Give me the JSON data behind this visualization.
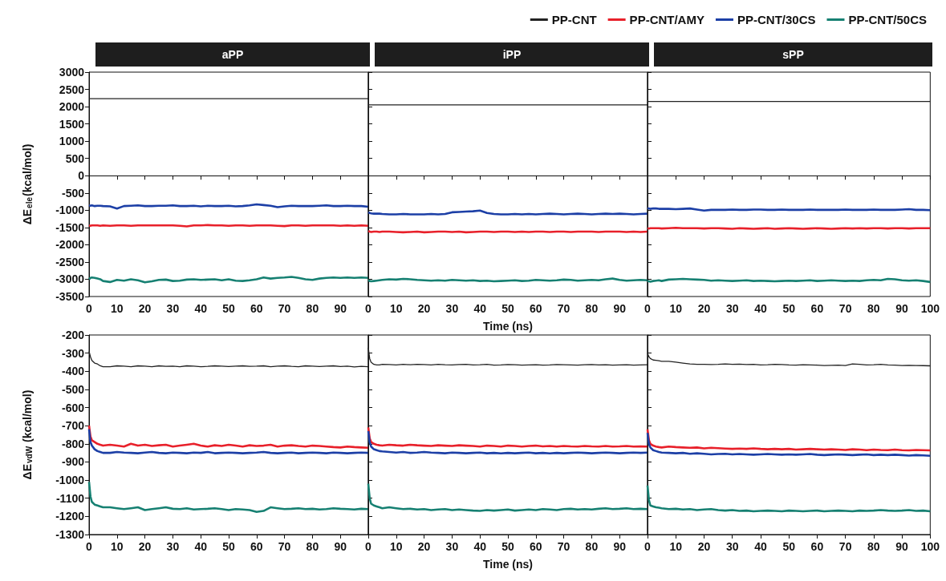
{
  "chart_data": [
    {
      "type": "line",
      "title": "aPP",
      "ylabel": "ΔE$_{ele}$(kcal/mol)",
      "xlim": [
        0,
        100
      ],
      "xticks": [
        0,
        10,
        20,
        30,
        40,
        50,
        60,
        70,
        80,
        90
      ],
      "ylim": [
        -3500,
        3000
      ],
      "yticks": [
        -3500,
        -3000,
        -2500,
        -2000,
        -1500,
        -1000,
        -500,
        0,
        500,
        1000,
        1500,
        2000,
        2500,
        3000
      ],
      "x": [
        0,
        0.5,
        1,
        2,
        3,
        4,
        5,
        7.5,
        10,
        12.5,
        15,
        17.5,
        20,
        22.5,
        25,
        27.5,
        30,
        32.5,
        35,
        37.5,
        40,
        42.5,
        45,
        47.5,
        50,
        52.5,
        55,
        57.5,
        60,
        62.5,
        65,
        67.5,
        70,
        72.5,
        75,
        77.5,
        80,
        82.5,
        85,
        87.5,
        90,
        92.5,
        95,
        97.5,
        100
      ],
      "series": [
        {
          "color": "#222222",
          "values": [
            2230,
            2230,
            2230,
            2230,
            2230,
            2230,
            2230,
            2230,
            2230,
            2230,
            2230,
            2230,
            2230,
            2230,
            2230,
            2230,
            2230,
            2230,
            2230,
            2230,
            2230,
            2230,
            2230,
            2230,
            2230,
            2230,
            2230,
            2230,
            2230,
            2230,
            2230,
            2230,
            2230,
            2230,
            2230,
            2230,
            2230,
            2230,
            2230,
            2230,
            2230,
            2230,
            2230,
            2230,
            2230
          ]
        },
        {
          "color": "#e8202a",
          "values": [
            -1440,
            -1450,
            -1440,
            -1440,
            -1440,
            -1450,
            -1440,
            -1450,
            -1440,
            -1440,
            -1450,
            -1440,
            -1440,
            -1440,
            -1440,
            -1440,
            -1440,
            -1450,
            -1470,
            -1440,
            -1440,
            -1430,
            -1440,
            -1440,
            -1450,
            -1440,
            -1440,
            -1450,
            -1440,
            -1440,
            -1440,
            -1450,
            -1460,
            -1440,
            -1440,
            -1450,
            -1440,
            -1440,
            -1440,
            -1440,
            -1450,
            -1440,
            -1450,
            -1440,
            -1450
          ]
        },
        {
          "color": "#1c3fa6",
          "values": [
            -860,
            -870,
            -860,
            -880,
            -870,
            -870,
            -880,
            -890,
            -950,
            -880,
            -870,
            -860,
            -880,
            -880,
            -870,
            -870,
            -860,
            -880,
            -880,
            -870,
            -890,
            -870,
            -880,
            -880,
            -870,
            -890,
            -880,
            -860,
            -830,
            -850,
            -870,
            -910,
            -890,
            -870,
            -880,
            -880,
            -880,
            -870,
            -860,
            -880,
            -880,
            -870,
            -880,
            -880,
            -900
          ]
        },
        {
          "color": "#168072",
          "values": [
            -3000,
            -2960,
            -2950,
            -2960,
            -2980,
            -3000,
            -3050,
            -3080,
            -3020,
            -3040,
            -3000,
            -3030,
            -3090,
            -3060,
            -3020,
            -3010,
            -3050,
            -3040,
            -3010,
            -3000,
            -3020,
            -3010,
            -3000,
            -3030,
            -3000,
            -3040,
            -3050,
            -3030,
            -3000,
            -2950,
            -2980,
            -2960,
            -2950,
            -2930,
            -2960,
            -3000,
            -3020,
            -2980,
            -2960,
            -2950,
            -2960,
            -2950,
            -2960,
            -2950,
            -2960
          ]
        }
      ]
    },
    {
      "type": "line",
      "title": "iPP",
      "xlabel": "Time (ns)",
      "legend": "top right",
      "tick_labels": "x",
      "xlim": [
        0,
        100
      ],
      "xticks": [
        0,
        10,
        20,
        30,
        40,
        50,
        60,
        70,
        80,
        90
      ],
      "ylim": [
        -3500,
        3000
      ],
      "yticks": [
        -3500,
        -3000,
        -2500,
        -2000,
        -1500,
        -1000,
        -500,
        0,
        500,
        1000,
        1500,
        2000,
        2500,
        3000
      ],
      "x": [
        0,
        0.5,
        1,
        2,
        3,
        4,
        5,
        7.5,
        10,
        12.5,
        15,
        17.5,
        20,
        22.5,
        25,
        27.5,
        30,
        32.5,
        35,
        37.5,
        40,
        42.5,
        45,
        47.5,
        50,
        52.5,
        55,
        57.5,
        60,
        62.5,
        65,
        67.5,
        70,
        72.5,
        75,
        77.5,
        80,
        82.5,
        85,
        87.5,
        90,
        92.5,
        95,
        97.5,
        100
      ],
      "series": [
        {
          "name": "PP-CNT",
          "color": "#222222",
          "values": [
            2050,
            2050,
            2050,
            2050,
            2050,
            2050,
            2050,
            2050,
            2050,
            2050,
            2050,
            2050,
            2050,
            2050,
            2050,
            2050,
            2050,
            2050,
            2050,
            2050,
            2050,
            2050,
            2050,
            2050,
            2050,
            2050,
            2050,
            2050,
            2050,
            2050,
            2050,
            2050,
            2050,
            2050,
            2050,
            2050,
            2050,
            2050,
            2050,
            2050,
            2050,
            2050,
            2050,
            2050,
            2050
          ]
        },
        {
          "name": "PP-CNT/AMY",
          "color": "#e8202a",
          "values": [
            -1600,
            -1620,
            -1630,
            -1620,
            -1620,
            -1630,
            -1620,
            -1620,
            -1630,
            -1640,
            -1630,
            -1620,
            -1640,
            -1630,
            -1620,
            -1620,
            -1630,
            -1620,
            -1640,
            -1630,
            -1620,
            -1620,
            -1630,
            -1620,
            -1620,
            -1630,
            -1620,
            -1630,
            -1620,
            -1620,
            -1630,
            -1620,
            -1620,
            -1630,
            -1620,
            -1620,
            -1620,
            -1630,
            -1620,
            -1620,
            -1620,
            -1630,
            -1620,
            -1630,
            -1620
          ]
        },
        {
          "name": "PP-CNT/30CS",
          "color": "#1c3fa6",
          "values": [
            -1060,
            -1080,
            -1090,
            -1100,
            -1100,
            -1100,
            -1110,
            -1120,
            -1120,
            -1110,
            -1120,
            -1120,
            -1120,
            -1110,
            -1120,
            -1110,
            -1060,
            -1050,
            -1040,
            -1030,
            -1010,
            -1080,
            -1110,
            -1120,
            -1120,
            -1110,
            -1120,
            -1110,
            -1120,
            -1110,
            -1100,
            -1110,
            -1120,
            -1110,
            -1100,
            -1110,
            -1120,
            -1110,
            -1100,
            -1110,
            -1100,
            -1110,
            -1120,
            -1110,
            -1100
          ]
        },
        {
          "name": "PP-CNT/50CS",
          "color": "#168072",
          "values": [
            -3020,
            -3050,
            -3060,
            -3050,
            -3040,
            -3030,
            -3020,
            -3000,
            -3010,
            -2990,
            -3000,
            -3020,
            -3030,
            -3040,
            -3030,
            -3040,
            -3020,
            -3030,
            -3040,
            -3030,
            -3050,
            -3040,
            -3060,
            -3050,
            -3040,
            -3030,
            -3050,
            -3040,
            -3020,
            -3030,
            -3040,
            -3030,
            -3010,
            -3020,
            -3040,
            -3030,
            -3020,
            -3030,
            -3000,
            -2980,
            -3020,
            -3040,
            -3030,
            -3020,
            -3030
          ]
        }
      ]
    },
    {
      "type": "line",
      "title": "sPP",
      "tick_labels": "x",
      "xlim": [
        0,
        100
      ],
      "xticks": [
        0,
        10,
        20,
        30,
        40,
        50,
        60,
        70,
        80,
        90,
        100
      ],
      "ylim": [
        -3500,
        3000
      ],
      "yticks": [
        -3500,
        -3000,
        -2500,
        -2000,
        -1500,
        -1000,
        -500,
        0,
        500,
        1000,
        1500,
        2000,
        2500,
        3000
      ],
      "x": [
        0,
        0.5,
        1,
        2,
        3,
        4,
        5,
        7.5,
        10,
        12.5,
        15,
        17.5,
        20,
        22.5,
        25,
        27.5,
        30,
        32.5,
        35,
        37.5,
        40,
        42.5,
        45,
        47.5,
        50,
        52.5,
        55,
        57.5,
        60,
        62.5,
        65,
        67.5,
        70,
        72.5,
        75,
        77.5,
        80,
        82.5,
        85,
        87.5,
        90,
        92.5,
        95,
        97.5,
        100
      ],
      "series": [
        {
          "color": "#222222",
          "values": [
            2150,
            2150,
            2150,
            2150,
            2150,
            2150,
            2150,
            2150,
            2150,
            2150,
            2150,
            2150,
            2150,
            2150,
            2150,
            2150,
            2150,
            2150,
            2150,
            2150,
            2150,
            2150,
            2150,
            2150,
            2150,
            2150,
            2150,
            2150,
            2150,
            2150,
            2150,
            2150,
            2150,
            2150,
            2150,
            2150,
            2150,
            2150,
            2150,
            2150,
            2150,
            2150,
            2150,
            2150,
            2150
          ]
        },
        {
          "color": "#e8202a",
          "values": [
            -1520,
            -1530,
            -1520,
            -1520,
            -1520,
            -1520,
            -1530,
            -1520,
            -1510,
            -1520,
            -1520,
            -1520,
            -1530,
            -1520,
            -1520,
            -1530,
            -1540,
            -1520,
            -1530,
            -1540,
            -1530,
            -1520,
            -1540,
            -1530,
            -1520,
            -1530,
            -1540,
            -1530,
            -1520,
            -1530,
            -1540,
            -1530,
            -1520,
            -1530,
            -1520,
            -1530,
            -1520,
            -1520,
            -1530,
            -1520,
            -1520,
            -1530,
            -1520,
            -1520,
            -1520
          ]
        },
        {
          "color": "#1c3fa6",
          "values": [
            -940,
            -950,
            -960,
            -950,
            -950,
            -960,
            -960,
            -960,
            -970,
            -960,
            -950,
            -980,
            -1010,
            -990,
            -990,
            -990,
            -980,
            -990,
            -990,
            -980,
            -980,
            -990,
            -990,
            -980,
            -990,
            -990,
            -990,
            -980,
            -990,
            -990,
            -990,
            -990,
            -980,
            -990,
            -990,
            -990,
            -980,
            -990,
            -990,
            -990,
            -980,
            -970,
            -990,
            -990,
            -1000
          ]
        },
        {
          "color": "#168072",
          "values": [
            -3050,
            -3060,
            -3070,
            -3050,
            -3040,
            -3030,
            -3050,
            -3010,
            -3000,
            -2990,
            -3000,
            -3010,
            -3020,
            -3040,
            -3030,
            -3040,
            -3050,
            -3040,
            -3030,
            -3050,
            -3040,
            -3050,
            -3060,
            -3050,
            -3040,
            -3050,
            -3040,
            -3030,
            -3050,
            -3040,
            -3030,
            -3040,
            -3050,
            -3040,
            -3050,
            -3030,
            -3020,
            -3030,
            -2990,
            -3000,
            -3030,
            -3040,
            -3030,
            -3050,
            -3080
          ]
        }
      ]
    },
    {
      "type": "line",
      "ylabel": "ΔE$_{vdW}$ (kcal/mol)",
      "xlim": [
        0,
        100
      ],
      "xticks": [
        0,
        10,
        20,
        30,
        40,
        50,
        60,
        70,
        80,
        90
      ],
      "ylim": [
        -1300,
        -200
      ],
      "yticks": [
        -1300,
        -1200,
        -1100,
        -1000,
        -900,
        -800,
        -700,
        -600,
        -500,
        -400,
        -300,
        -200
      ],
      "x": [
        0,
        0.5,
        1,
        2,
        3,
        4,
        5,
        7.5,
        10,
        12.5,
        15,
        17.5,
        20,
        22.5,
        25,
        27.5,
        30,
        32.5,
        35,
        37.5,
        40,
        42.5,
        45,
        47.5,
        50,
        52.5,
        55,
        57.5,
        60,
        62.5,
        65,
        67.5,
        70,
        72.5,
        75,
        77.5,
        80,
        82.5,
        85,
        87.5,
        90,
        92.5,
        95,
        97.5,
        100
      ],
      "series": [
        {
          "color": "#222222",
          "values": [
            -290,
            -320,
            -340,
            -355,
            -360,
            -370,
            -375,
            -375,
            -370,
            -372,
            -375,
            -370,
            -372,
            -375,
            -370,
            -373,
            -372,
            -375,
            -370,
            -372,
            -375,
            -373,
            -370,
            -372,
            -374,
            -372,
            -370,
            -373,
            -372,
            -370,
            -375,
            -372,
            -370,
            -373,
            -375,
            -370,
            -372,
            -374,
            -372,
            -370,
            -374,
            -372,
            -376,
            -373,
            -375
          ]
        },
        {
          "color": "#e8202a",
          "values": [
            -700,
            -760,
            -780,
            -790,
            -800,
            -805,
            -810,
            -805,
            -810,
            -815,
            -800,
            -810,
            -805,
            -812,
            -808,
            -805,
            -815,
            -810,
            -805,
            -800,
            -810,
            -815,
            -808,
            -812,
            -805,
            -810,
            -815,
            -808,
            -812,
            -810,
            -805,
            -815,
            -810,
            -808,
            -812,
            -815,
            -810,
            -812,
            -815,
            -818,
            -820,
            -815,
            -818,
            -820,
            -822
          ]
        },
        {
          "color": "#1c3fa6",
          "values": [
            -720,
            -790,
            -810,
            -830,
            -840,
            -845,
            -850,
            -850,
            -845,
            -848,
            -850,
            -852,
            -848,
            -845,
            -850,
            -852,
            -848,
            -850,
            -852,
            -848,
            -850,
            -845,
            -852,
            -850,
            -848,
            -850,
            -852,
            -850,
            -848,
            -845,
            -850,
            -852,
            -850,
            -848,
            -852,
            -850,
            -848,
            -850,
            -852,
            -848,
            -850,
            -852,
            -850,
            -848,
            -850
          ]
        },
        {
          "color": "#168072",
          "values": [
            -1010,
            -1090,
            -1120,
            -1135,
            -1140,
            -1145,
            -1150,
            -1150,
            -1155,
            -1160,
            -1155,
            -1150,
            -1165,
            -1160,
            -1155,
            -1150,
            -1158,
            -1160,
            -1155,
            -1162,
            -1160,
            -1158,
            -1155,
            -1160,
            -1165,
            -1160,
            -1162,
            -1165,
            -1175,
            -1170,
            -1150,
            -1155,
            -1160,
            -1158,
            -1155,
            -1160,
            -1158,
            -1162,
            -1160,
            -1155,
            -1158,
            -1160,
            -1162,
            -1158,
            -1160
          ]
        }
      ]
    },
    {
      "type": "line",
      "xlabel": "Time (ns)",
      "tick_labels": "x",
      "xlim": [
        0,
        100
      ],
      "xticks": [
        0,
        10,
        20,
        30,
        40,
        50,
        60,
        70,
        80,
        90
      ],
      "ylim": [
        -1300,
        -200
      ],
      "yticks": [
        -1300,
        -1200,
        -1100,
        -1000,
        -900,
        -800,
        -700,
        -600,
        -500,
        -400,
        -300,
        -200
      ],
      "x": [
        0,
        0.5,
        1,
        2,
        3,
        4,
        5,
        7.5,
        10,
        12.5,
        15,
        17.5,
        20,
        22.5,
        25,
        27.5,
        30,
        32.5,
        35,
        37.5,
        40,
        42.5,
        45,
        47.5,
        50,
        52.5,
        55,
        57.5,
        60,
        62.5,
        65,
        67.5,
        70,
        72.5,
        75,
        77.5,
        80,
        82.5,
        85,
        87.5,
        90,
        92.5,
        95,
        97.5,
        100
      ],
      "series": [
        {
          "color": "#222222",
          "values": [
            -270,
            -330,
            -350,
            -362,
            -365,
            -365,
            -362,
            -363,
            -365,
            -362,
            -364,
            -362,
            -363,
            -365,
            -362,
            -364,
            -365,
            -363,
            -362,
            -365,
            -364,
            -362,
            -366,
            -365,
            -363,
            -364,
            -366,
            -365,
            -364,
            -366,
            -365,
            -363,
            -364,
            -365,
            -366,
            -364,
            -363,
            -365,
            -364,
            -366,
            -365,
            -364,
            -366,
            -365,
            -364
          ]
        },
        {
          "color": "#e8202a",
          "values": [
            -710,
            -770,
            -790,
            -800,
            -805,
            -808,
            -810,
            -805,
            -808,
            -810,
            -805,
            -808,
            -810,
            -812,
            -808,
            -810,
            -812,
            -808,
            -810,
            -812,
            -815,
            -810,
            -812,
            -815,
            -810,
            -812,
            -815,
            -812,
            -810,
            -814,
            -812,
            -815,
            -812,
            -814,
            -815,
            -812,
            -814,
            -815,
            -812,
            -815,
            -814,
            -812,
            -815,
            -814,
            -815
          ]
        },
        {
          "color": "#1c3fa6",
          "values": [
            -730,
            -790,
            -815,
            -830,
            -835,
            -840,
            -842,
            -845,
            -848,
            -845,
            -850,
            -848,
            -845,
            -848,
            -850,
            -852,
            -848,
            -850,
            -852,
            -850,
            -848,
            -852,
            -850,
            -853,
            -850,
            -852,
            -850,
            -848,
            -852,
            -850,
            -853,
            -850,
            -852,
            -850,
            -848,
            -850,
            -852,
            -850,
            -848,
            -850,
            -852,
            -850,
            -848,
            -850,
            -848
          ]
        },
        {
          "color": "#168072",
          "values": [
            -1020,
            -1100,
            -1130,
            -1140,
            -1145,
            -1150,
            -1155,
            -1150,
            -1155,
            -1160,
            -1158,
            -1162,
            -1160,
            -1165,
            -1162,
            -1160,
            -1165,
            -1162,
            -1165,
            -1168,
            -1170,
            -1165,
            -1168,
            -1165,
            -1162,
            -1168,
            -1165,
            -1162,
            -1165,
            -1160,
            -1162,
            -1165,
            -1160,
            -1158,
            -1162,
            -1160,
            -1162,
            -1158,
            -1155,
            -1160,
            -1158,
            -1155,
            -1160,
            -1158,
            -1160
          ]
        }
      ]
    },
    {
      "type": "line",
      "tick_labels": "x",
      "xlim": [
        0,
        100
      ],
      "xticks": [
        0,
        10,
        20,
        30,
        40,
        50,
        60,
        70,
        80,
        90,
        100
      ],
      "ylim": [
        -1300,
        -200
      ],
      "yticks": [
        -1300,
        -1200,
        -1100,
        -1000,
        -900,
        -800,
        -700,
        -600,
        -500,
        -400,
        -300,
        -200
      ],
      "x": [
        0,
        0.5,
        1,
        2,
        3,
        4,
        5,
        7.5,
        10,
        12.5,
        15,
        17.5,
        20,
        22.5,
        25,
        27.5,
        30,
        32.5,
        35,
        37.5,
        40,
        42.5,
        45,
        47.5,
        50,
        52.5,
        55,
        57.5,
        60,
        62.5,
        65,
        67.5,
        70,
        72.5,
        75,
        77.5,
        80,
        82.5,
        85,
        87.5,
        90,
        92.5,
        95,
        97.5,
        100
      ],
      "series": [
        {
          "color": "#222222",
          "values": [
            -300,
            -320,
            -330,
            -338,
            -340,
            -342,
            -345,
            -345,
            -350,
            -355,
            -360,
            -362,
            -362,
            -363,
            -362,
            -360,
            -362,
            -361,
            -363,
            -362,
            -365,
            -364,
            -362,
            -363,
            -365,
            -366,
            -364,
            -365,
            -366,
            -368,
            -367,
            -366,
            -368,
            -360,
            -362,
            -365,
            -364,
            -362,
            -365,
            -366,
            -368,
            -367,
            -368,
            -369,
            -370
          ]
        },
        {
          "color": "#e8202a",
          "values": [
            -720,
            -780,
            -800,
            -810,
            -815,
            -818,
            -820,
            -815,
            -818,
            -820,
            -822,
            -820,
            -825,
            -822,
            -824,
            -826,
            -828,
            -826,
            -828,
            -825,
            -828,
            -830,
            -828,
            -830,
            -828,
            -832,
            -830,
            -828,
            -830,
            -832,
            -830,
            -832,
            -834,
            -830,
            -832,
            -835,
            -832,
            -834,
            -835,
            -832,
            -835,
            -836,
            -834,
            -835,
            -836
          ]
        },
        {
          "color": "#1c3fa6",
          "values": [
            -740,
            -800,
            -820,
            -835,
            -840,
            -845,
            -848,
            -850,
            -852,
            -850,
            -855,
            -852,
            -855,
            -858,
            -856,
            -855,
            -858,
            -856,
            -858,
            -860,
            -858,
            -856,
            -858,
            -860,
            -858,
            -860,
            -858,
            -856,
            -860,
            -862,
            -860,
            -858,
            -860,
            -862,
            -860,
            -858,
            -862,
            -860,
            -862,
            -860,
            -862,
            -865,
            -862,
            -864,
            -866
          ]
        },
        {
          "color": "#168072",
          "values": [
            -1030,
            -1110,
            -1140,
            -1145,
            -1150,
            -1152,
            -1155,
            -1160,
            -1158,
            -1162,
            -1160,
            -1165,
            -1162,
            -1160,
            -1165,
            -1168,
            -1165,
            -1170,
            -1168,
            -1172,
            -1170,
            -1168,
            -1170,
            -1172,
            -1168,
            -1170,
            -1172,
            -1170,
            -1168,
            -1172,
            -1170,
            -1168,
            -1170,
            -1172,
            -1168,
            -1170,
            -1168,
            -1165,
            -1168,
            -1170,
            -1168,
            -1165,
            -1170,
            -1168,
            -1172
          ]
        }
      ]
    }
  ]
}
